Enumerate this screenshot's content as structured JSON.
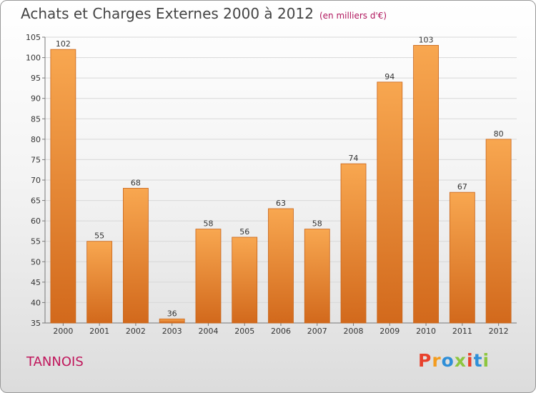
{
  "header": {
    "title": "Achats et Charges Externes 2000 à 2012",
    "subtitle": "(en milliers d'€)"
  },
  "footer": {
    "place": "TANNOIS",
    "logo_text": "Proxiti"
  },
  "colors": {
    "bar_top": "#f8a750",
    "bar_bottom": "#d2691c",
    "title": "#444444",
    "place": "#c0175c",
    "logo_letters": [
      "#e8412c",
      "#f39c1f",
      "#2f8fd8",
      "#8dc63f",
      "#e8412c",
      "#2f8fd8",
      "#8dc63f"
    ]
  },
  "chart_data": {
    "type": "bar",
    "title": "Achats et Charges Externes 2000 à 2012",
    "subtitle": "(en milliers d'€)",
    "categories": [
      "2000",
      "2001",
      "2002",
      "2003",
      "2004",
      "2005",
      "2006",
      "2007",
      "2008",
      "2009",
      "2010",
      "2011",
      "2012"
    ],
    "values": [
      102,
      55,
      68,
      36,
      58,
      56,
      63,
      58,
      74,
      94,
      103,
      67,
      80
    ],
    "ylim": [
      35,
      105
    ],
    "yticks": [
      35,
      40,
      45,
      50,
      55,
      60,
      65,
      70,
      75,
      80,
      85,
      90,
      95,
      100,
      105
    ],
    "grid": true,
    "legend": "none",
    "xlabel": "",
    "ylabel": ""
  }
}
